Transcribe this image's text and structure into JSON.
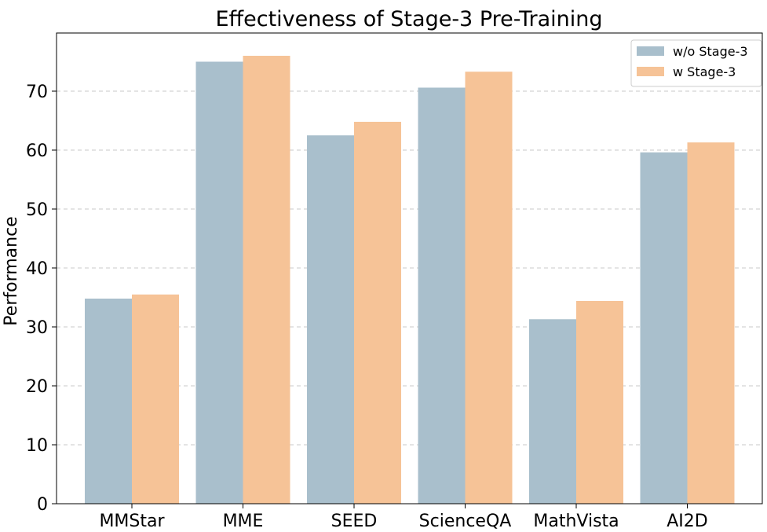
{
  "chart_data": {
    "type": "bar",
    "title": "Effectiveness of Stage-3 Pre-Training",
    "xlabel": "",
    "ylabel": "Performance",
    "ylim": [
      0,
      80
    ],
    "yticks": [
      0,
      10,
      20,
      30,
      40,
      50,
      60,
      70
    ],
    "grid": "y-dashed",
    "legend_position": "top-right",
    "categories": [
      "MMStar",
      "MME",
      "SEED",
      "ScienceQA",
      "MathVista",
      "AI2D"
    ],
    "series": [
      {
        "name": "w/o Stage-3",
        "color": "#a9bfcc",
        "values": [
          34.8,
          75.0,
          62.5,
          70.6,
          31.3,
          59.6
        ]
      },
      {
        "name": "w Stage-3",
        "color": "#f6c397",
        "values": [
          35.5,
          76.0,
          64.8,
          73.3,
          34.4,
          61.3
        ]
      }
    ]
  }
}
